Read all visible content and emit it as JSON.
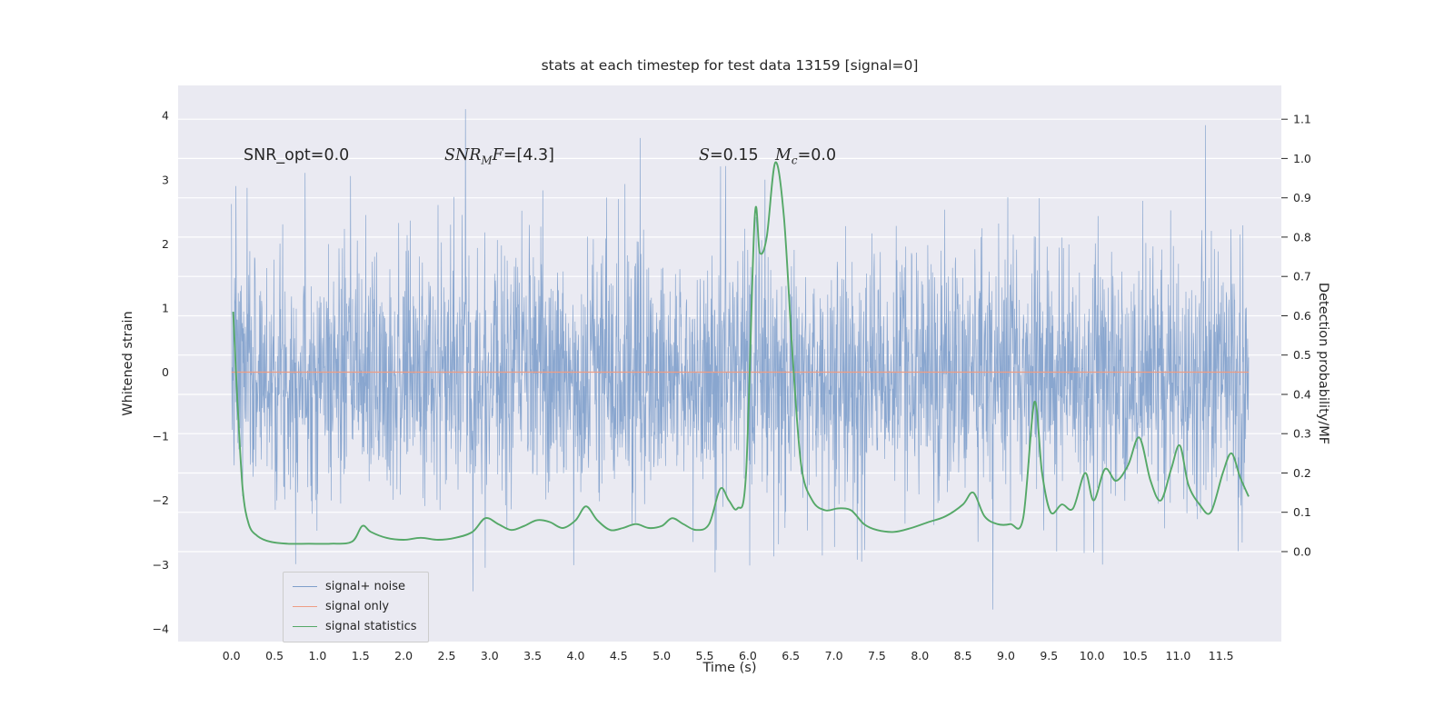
{
  "title": "stats at each timestep for test data 13159 [signal=0]",
  "annotations": {
    "snr_opt": "SNR_opt=0.0",
    "snr_mf": {
      "prefix": "SNR",
      "sub": "M",
      "suffix": "F",
      "value": "=[4.3]"
    },
    "s": {
      "label": "S",
      "value": "=0.15"
    },
    "mc": {
      "label": "M",
      "sub": "c",
      "value": "=0.0"
    }
  },
  "chart_data": {
    "type": "line",
    "title": "stats at each timestep for test data 13159 [signal=0]",
    "grid": "horizontal-white-on-lavender",
    "background_color": "#eaeaf2",
    "legend_position": "lower-left",
    "x_axis": {
      "label": "Time (s)",
      "range": [
        -0.62,
        12.2
      ],
      "ticks": [
        0.0,
        0.5,
        1.0,
        1.5,
        2.0,
        2.5,
        3.0,
        3.5,
        4.0,
        4.5,
        5.0,
        5.5,
        6.0,
        6.5,
        7.0,
        7.5,
        8.0,
        8.5,
        9.0,
        9.5,
        10.0,
        10.5,
        11.0,
        11.5
      ]
    },
    "y_left_axis": {
      "label": "Whitened strain",
      "range": [
        -4.2,
        4.47
      ],
      "ticks": [
        -4,
        -3,
        -2,
        -1,
        0,
        1,
        2,
        3,
        4
      ]
    },
    "y_right_axis": {
      "label": "Detection probability/MF",
      "range": [
        -0.229,
        1.186
      ],
      "ticks": [
        0.0,
        0.1,
        0.2,
        0.3,
        0.4,
        0.5,
        0.6,
        0.7,
        0.8,
        0.9,
        1.0,
        1.1
      ]
    },
    "series": [
      {
        "name": "signal+ noise",
        "axis": "left",
        "color": "#7e9fcb",
        "style": "noise",
        "noise": {
          "distribution": "gaussian",
          "mean": 0.0,
          "std": 0.95,
          "t_start": 0.0,
          "t_end": 11.82,
          "n_points": 3000,
          "seed": 7,
          "clip": [
            -3.75,
            4.15
          ],
          "spikes": [
            [
              2.72,
              4.1
            ],
            [
              4.75,
              3.65
            ],
            [
              11.32,
              3.85
            ],
            [
              6.2,
              3.0
            ],
            [
              0.05,
              2.9
            ],
            [
              8.85,
              -3.7
            ],
            [
              2.95,
              -3.05
            ],
            [
              10.12,
              -3.0
            ]
          ]
        }
      },
      {
        "name": "signal only",
        "axis": "left",
        "color": "#ee9d84",
        "style": "constant",
        "value": 0.0,
        "t_start": 0.0,
        "t_end": 11.82
      },
      {
        "name": "signal statistics",
        "axis": "right",
        "color": "#55a868",
        "style": "curve",
        "points": [
          [
            0.02,
            0.61
          ],
          [
            0.07,
            0.38
          ],
          [
            0.13,
            0.16
          ],
          [
            0.2,
            0.07
          ],
          [
            0.3,
            0.04
          ],
          [
            0.45,
            0.025
          ],
          [
            0.65,
            0.02
          ],
          [
            0.9,
            0.02
          ],
          [
            1.15,
            0.02
          ],
          [
            1.4,
            0.025
          ],
          [
            1.52,
            0.065
          ],
          [
            1.62,
            0.05
          ],
          [
            1.8,
            0.035
          ],
          [
            2.0,
            0.03
          ],
          [
            2.2,
            0.035
          ],
          [
            2.4,
            0.03
          ],
          [
            2.6,
            0.035
          ],
          [
            2.8,
            0.05
          ],
          [
            2.95,
            0.085
          ],
          [
            3.1,
            0.07
          ],
          [
            3.25,
            0.055
          ],
          [
            3.4,
            0.065
          ],
          [
            3.55,
            0.08
          ],
          [
            3.7,
            0.075
          ],
          [
            3.85,
            0.06
          ],
          [
            4.0,
            0.08
          ],
          [
            4.12,
            0.115
          ],
          [
            4.25,
            0.08
          ],
          [
            4.4,
            0.055
          ],
          [
            4.55,
            0.06
          ],
          [
            4.7,
            0.07
          ],
          [
            4.85,
            0.06
          ],
          [
            5.0,
            0.065
          ],
          [
            5.12,
            0.085
          ],
          [
            5.25,
            0.07
          ],
          [
            5.4,
            0.055
          ],
          [
            5.55,
            0.07
          ],
          [
            5.68,
            0.16
          ],
          [
            5.78,
            0.13
          ],
          [
            5.88,
            0.11
          ],
          [
            5.98,
            0.2
          ],
          [
            6.08,
            0.85
          ],
          [
            6.14,
            0.76
          ],
          [
            6.22,
            0.8
          ],
          [
            6.32,
            0.99
          ],
          [
            6.42,
            0.85
          ],
          [
            6.52,
            0.5
          ],
          [
            6.62,
            0.22
          ],
          [
            6.75,
            0.13
          ],
          [
            6.9,
            0.105
          ],
          [
            7.05,
            0.11
          ],
          [
            7.2,
            0.105
          ],
          [
            7.35,
            0.07
          ],
          [
            7.5,
            0.055
          ],
          [
            7.7,
            0.05
          ],
          [
            7.9,
            0.06
          ],
          [
            8.1,
            0.075
          ],
          [
            8.3,
            0.09
          ],
          [
            8.5,
            0.12
          ],
          [
            8.62,
            0.15
          ],
          [
            8.75,
            0.09
          ],
          [
            8.9,
            0.07
          ],
          [
            9.05,
            0.07
          ],
          [
            9.2,
            0.085
          ],
          [
            9.33,
            0.38
          ],
          [
            9.42,
            0.2
          ],
          [
            9.52,
            0.1
          ],
          [
            9.65,
            0.12
          ],
          [
            9.78,
            0.11
          ],
          [
            9.92,
            0.2
          ],
          [
            10.02,
            0.13
          ],
          [
            10.15,
            0.21
          ],
          [
            10.28,
            0.18
          ],
          [
            10.42,
            0.22
          ],
          [
            10.55,
            0.29
          ],
          [
            10.68,
            0.18
          ],
          [
            10.8,
            0.13
          ],
          [
            10.92,
            0.21
          ],
          [
            11.02,
            0.27
          ],
          [
            11.12,
            0.17
          ],
          [
            11.25,
            0.12
          ],
          [
            11.38,
            0.1
          ],
          [
            11.52,
            0.2
          ],
          [
            11.62,
            0.25
          ],
          [
            11.72,
            0.19
          ],
          [
            11.82,
            0.14
          ]
        ]
      }
    ]
  }
}
